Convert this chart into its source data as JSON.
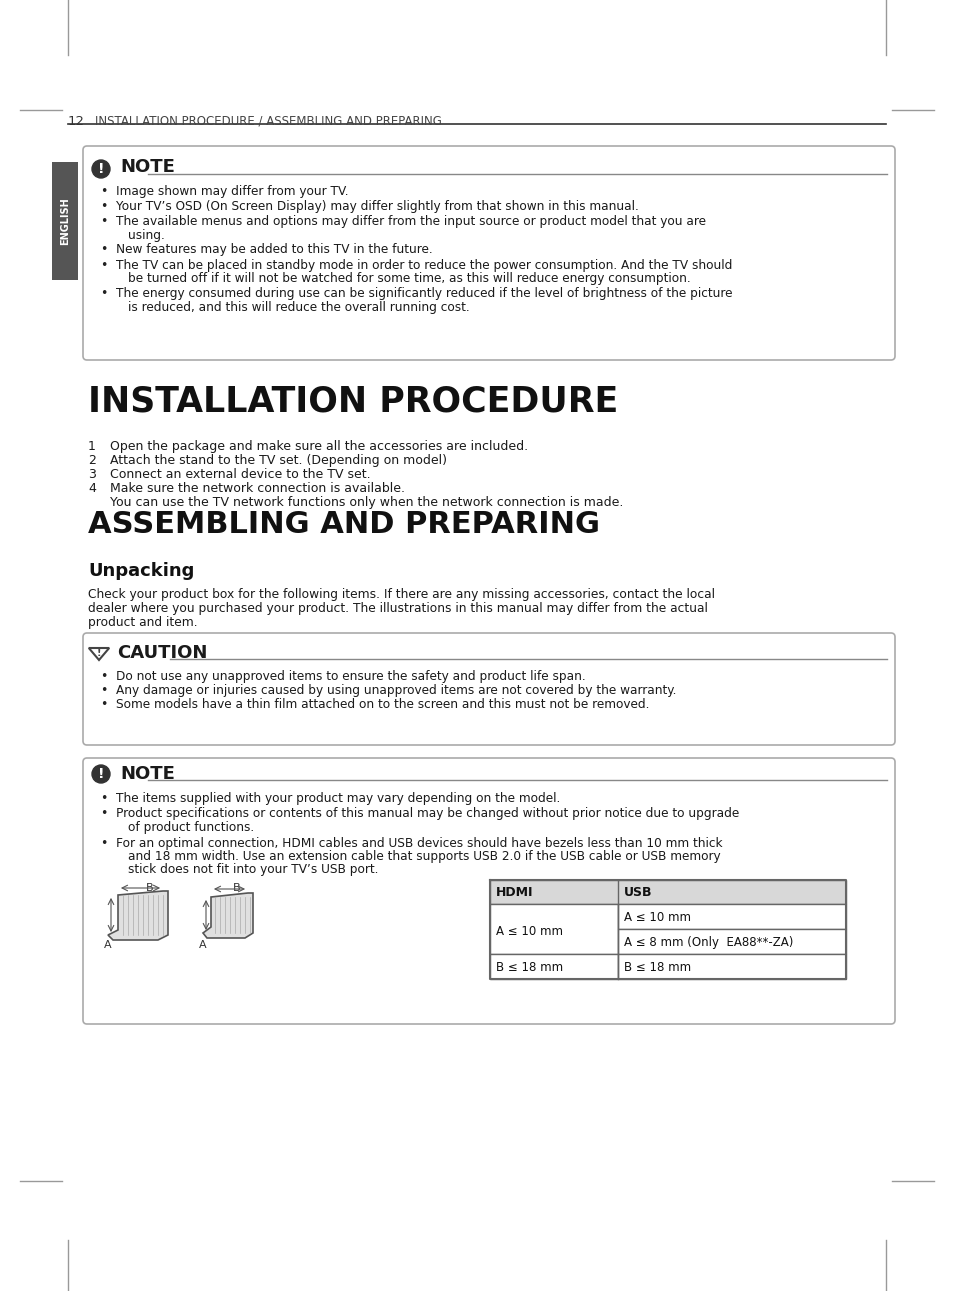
{
  "page_num": "12",
  "page_header": "INSTALLATION PROCEDURE / ASSEMBLING AND PREPARING",
  "bg_color": "#ffffff",
  "note_box1_items": [
    "Image shown may differ from your TV.",
    "Your TV’s OSD (On Screen Display) may differ slightly from that shown in this manual.",
    "The available menus and options may differ from the input source or product model that you are\nusing.",
    "New features may be added to this TV in the future.",
    "The TV can be placed in standby mode in order to reduce the power consumption. And the TV should\nbe turned off if it will not be watched for some time, as this will reduce energy consumption.",
    "The energy consumed during use can be significantly reduced if the level of brightness of the picture\nis reduced, and this will reduce the overall running cost."
  ],
  "install_title": "INSTALLATION PROCEDURE",
  "install_steps": [
    [
      "1",
      "Open the package and make sure all the accessories are included."
    ],
    [
      "2",
      "Attach the stand to the TV set. (Depending on model)"
    ],
    [
      "3",
      "Connect an external device to the TV set."
    ],
    [
      "4",
      "Make sure the network connection is available.",
      "You can use the TV network functions only when the network connection is made."
    ]
  ],
  "assembling_title": "ASSEMBLING AND PREPARING",
  "unpack_title": "Unpacking",
  "unpack_text": "Check your product box for the following items. If there are any missing accessories, contact the local\ndealer where you purchased your product. The illustrations in this manual may differ from the actual\nproduct and item.",
  "caution_items": [
    "Do not use any unapproved items to ensure the safety and product life span.",
    "Any damage or injuries caused by using unapproved items are not covered by the warranty.",
    "Some models have a thin film attached on to the screen and this must not be removed."
  ],
  "note_box2_items": [
    "The items supplied with your product may vary depending on the model.",
    "Product specifications or contents of this manual may be changed without prior notice due to upgrade\nof product functions.",
    "For an optimal connection, HDMI cables and USB devices should have bezels less than 10 mm thick\nand 18 mm width. Use an extension cable that supports USB 2.0 if the USB cable or USB memory\nstick does not fit into your TV’s USB port."
  ],
  "table_headers": [
    "HDMI",
    "USB"
  ],
  "table_row1_hdmi": "A ≤ 10 mm",
  "table_row1_usb1": "A ≤ 10 mm",
  "table_row1_usb2": "A ≤ 8 mm (Only  EA88**-ZA)",
  "table_row2_hdmi": "B ≤ 18 mm",
  "table_row2_usb": "B ≤ 18 mm",
  "english_tab_color": "#555555",
  "english_tab_text": "ENGLISH",
  "line_color": "#999999",
  "box_edge_color": "#aaaaaa",
  "text_dark": "#1a1a1a",
  "text_mid": "#333333",
  "header_line_color": "#555555"
}
